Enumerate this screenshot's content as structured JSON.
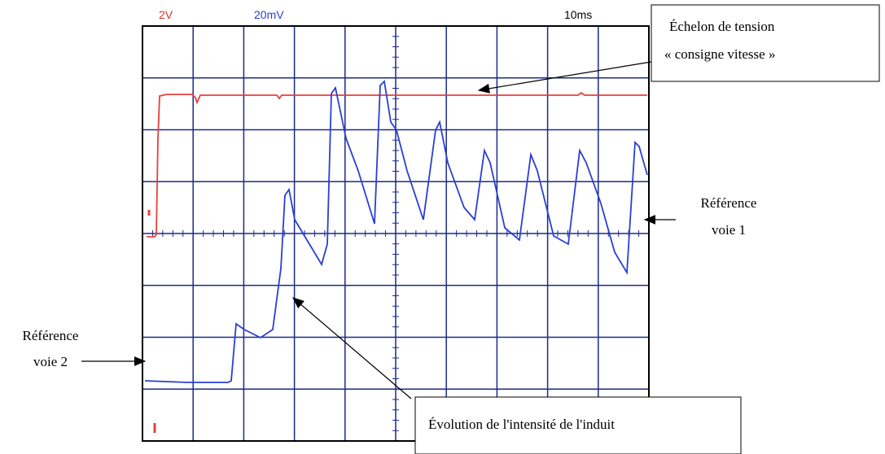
{
  "scope": {
    "ch1_scale": "2V",
    "ch2_scale": "20mV",
    "timebase": "10ms"
  },
  "annotations": {
    "step": {
      "line1": "Échelon de tension",
      "line2": "« consigne vitesse »"
    },
    "ref1": {
      "line1": "Référence",
      "line2": "voie 1"
    },
    "ref2": {
      "line1": "Référence",
      "line2": "voie 2"
    },
    "current": {
      "text": "Évolution de l'intensité de l'induit"
    }
  }
}
